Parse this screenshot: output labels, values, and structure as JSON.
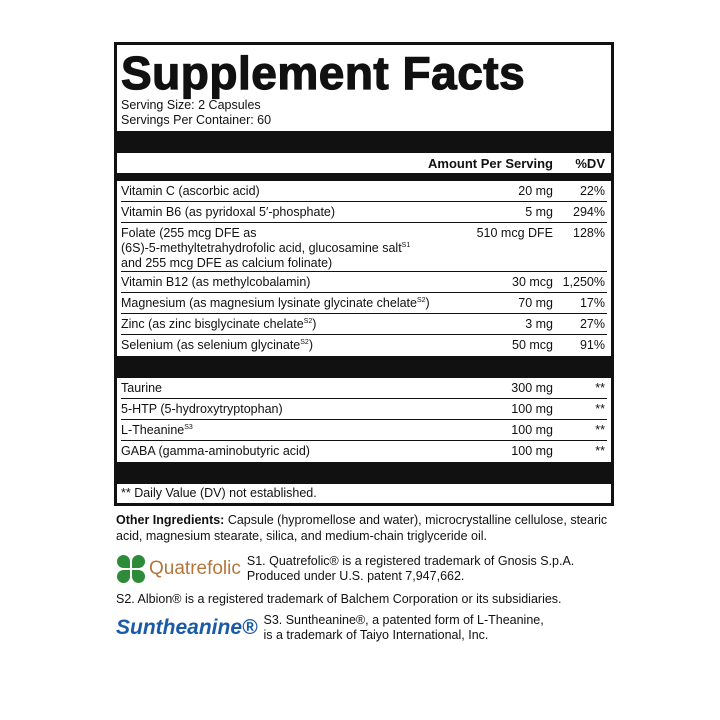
{
  "title": "Supplement Facts",
  "serving_size": "Serving Size: 2 Capsules",
  "servings_per_container": "Servings Per Container: 60",
  "header": {
    "amount": "Amount Per Serving",
    "dv": "%DV"
  },
  "group1": [
    {
      "name": "Vitamin C (ascorbic acid)",
      "sup": "",
      "name2": "",
      "amount": "20 mg",
      "dv": "22%"
    },
    {
      "name": "Vitamin B6 (as pyridoxal 5′-phosphate)",
      "sup": "",
      "name2": "",
      "amount": "5 mg",
      "dv": "294%"
    },
    {
      "name": "Folate (255 mcg DFE as\n(6S)-5-methyltetrahydrofolic acid, glucosamine salt",
      "sup": "S1",
      "name2": "\nand 255 mcg DFE as calcium folinate)",
      "amount": "510 mcg DFE",
      "dv": "128%"
    },
    {
      "name": "Vitamin B12 (as methylcobalamin)",
      "sup": "",
      "name2": "",
      "amount": "30 mcg",
      "dv": "1,250%"
    },
    {
      "name": "Magnesium (as magnesium lysinate glycinate chelate",
      "sup": "S2",
      "name2": ")",
      "amount": "70 mg",
      "dv": "17%"
    },
    {
      "name": "Zinc (as zinc bisglycinate chelate",
      "sup": "S2",
      "name2": ")",
      "amount": "3 mg",
      "dv": "27%"
    },
    {
      "name": "Selenium (as selenium glycinate",
      "sup": "S2",
      "name2": ")",
      "amount": "50 mcg",
      "dv": "91%"
    }
  ],
  "group2": [
    {
      "name": "Taurine",
      "sup": "",
      "name2": "",
      "amount": "300 mg",
      "dv": "**"
    },
    {
      "name": "5-HTP (5-hydroxytryptophan)",
      "sup": "",
      "name2": "",
      "amount": "100 mg",
      "dv": "**"
    },
    {
      "name": "L-Theanine",
      "sup": "S3",
      "name2": "",
      "amount": "100 mg",
      "dv": "**"
    },
    {
      "name": "GABA (gamma-aminobutyric acid)",
      "sup": "",
      "name2": "",
      "amount": "100 mg",
      "dv": "**"
    }
  ],
  "dv_note": "** Daily Value (DV) not established.",
  "other_ingredients": {
    "label": "Other Ingredients:",
    "text": " Capsule (hypromellose and water), microcrystalline cellulose, stearic acid, magnesium stearate, silica, and medium-chain triglyceride oil."
  },
  "footnotes": {
    "s1": "S1. Quatrefolic® is a registered trademark of Gnosis S.p.A.\nProduced under U.S. patent 7,947,662.",
    "s2": "S2. Albion® is a registered trademark of Balchem Corporation or its subsidiaries.",
    "s3": "S3. Suntheanine®, a patented form of L-Theanine,\nis a trademark of Taiyo International, Inc."
  },
  "logos": {
    "quatrefolic": "Quatrefolic",
    "suntheanine": "Suntheanine®"
  },
  "colors": {
    "quatrefolic_green": "#2e8b3a",
    "quatrefolic_text": "#b5763a",
    "suntheanine_blue": "#1a5aa6"
  }
}
